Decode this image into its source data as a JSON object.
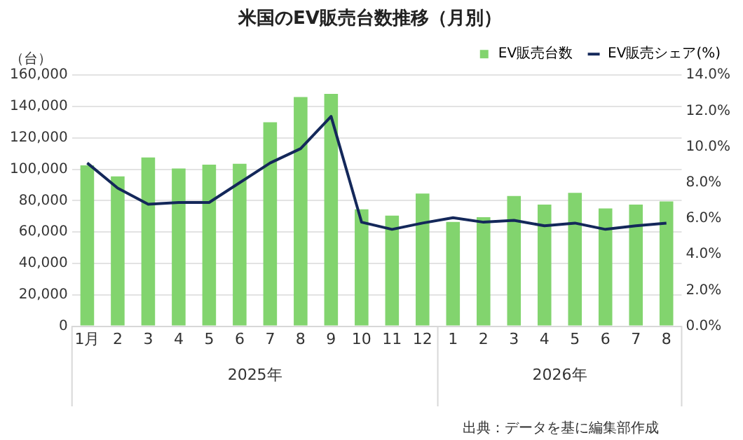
{
  "chart_data": {
    "type": "bar",
    "title": "米国のEV販売台数推移（月別）",
    "ylabel": "（台）",
    "categories": [
      "1月",
      "2",
      "3",
      "4",
      "5",
      "6",
      "7",
      "8",
      "9",
      "10",
      "11",
      "12",
      "1",
      "2",
      "3",
      "4",
      "5",
      "6",
      "7",
      "8"
    ],
    "series": [
      {
        "name": "EV販売台数",
        "color": "#82d46e",
        "values": [
          102500,
          95500,
          107500,
          100500,
          103000,
          103500,
          130000,
          146000,
          148000,
          74500,
          70500,
          84500,
          66500,
          69500,
          83000,
          77500,
          85000,
          75000,
          77500,
          79500
        ]
      },
      {
        "name": "EV販売シェア(%)",
        "type": "line",
        "axis": "y2",
        "color": "#14285a",
        "values": [
          9.1,
          7.7,
          6.8,
          6.9,
          6.9,
          8.0,
          9.1,
          9.9,
          11.7,
          5.8,
          5.4,
          5.75,
          6.05,
          5.8,
          5.9,
          5.6,
          5.75,
          5.4,
          5.6,
          5.75
        ]
      }
    ],
    "ylim": [
      0,
      160000
    ],
    "yticks": [
      {
        "value": 0,
        "label": "0"
      },
      {
        "value": 20000,
        "label": "20,000"
      },
      {
        "value": 40000,
        "label": "40,000"
      },
      {
        "value": 60000,
        "label": "60,000"
      },
      {
        "value": 80000,
        "label": "80,000"
      },
      {
        "value": 100000,
        "label": "100,000"
      },
      {
        "value": 120000,
        "label": "120,000"
      },
      {
        "value": 140000,
        "label": "140,000"
      },
      {
        "value": 160000,
        "label": "160,000"
      }
    ],
    "y2lim": [
      0,
      14
    ],
    "y2ticks": [
      {
        "value": 0,
        "label": "0.0%"
      },
      {
        "value": 2,
        "label": "2.0%"
      },
      {
        "value": 4,
        "label": "4.0%"
      },
      {
        "value": 6,
        "label": "6.0%"
      },
      {
        "value": 8,
        "label": "8.0%"
      },
      {
        "value": 10,
        "label": "10.0%"
      },
      {
        "value": 12,
        "label": "12.0%"
      },
      {
        "value": 14,
        "label": "14.0%"
      }
    ],
    "grid": "y",
    "legend": "top right",
    "marker": "none",
    "line_style": "solid",
    "annotations": [
      "2025年",
      "2026年",
      "出典：データを基に編集部作成"
    ]
  }
}
